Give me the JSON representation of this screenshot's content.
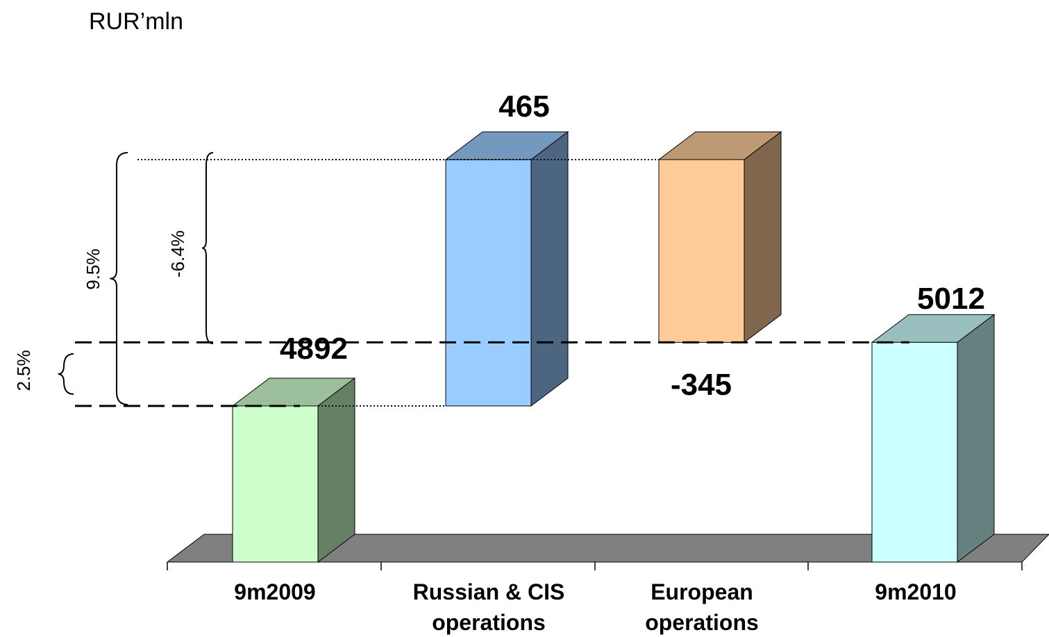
{
  "unit_label": "RUR’mln",
  "chart_data": {
    "type": "bar",
    "subtype": "waterfall-3d",
    "categories": [
      [
        "9m2009"
      ],
      [
        "Russian & CIS",
        "operations"
      ],
      [
        "European",
        "operations"
      ],
      [
        "9m2010"
      ]
    ],
    "values": [
      4892,
      465,
      -345,
      5012
    ],
    "value_labels": [
      "4892",
      "465",
      "-345",
      "5012"
    ],
    "percent_annotations": [
      "9.5%",
      "-6.4%",
      "2.5%"
    ],
    "colors": {
      "9m2009": {
        "front": "#ccffcc",
        "top": "#9bbf9b",
        "side": "#668066"
      },
      "Russian & CIS operations": {
        "front": "#99ccff",
        "top": "#7399bf",
        "side": "#4c6580"
      },
      "European operations": {
        "front": "#ffcc99",
        "top": "#bf9973",
        "side": "#80664c"
      },
      "9m2010": {
        "front": "#ccffff",
        "top": "#99bfbf",
        "side": "#668080"
      }
    },
    "floor_color": "#808080"
  }
}
